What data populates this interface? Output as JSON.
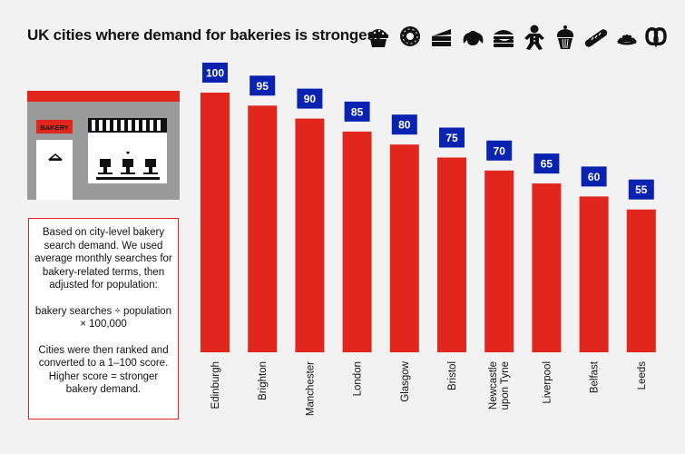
{
  "title": "UK cities where demand for bakeries is strongest",
  "icons": [
    "pie-icon",
    "donut-icon",
    "cake-slice-icon",
    "croissant-icon",
    "sandwich-icon",
    "gingerbread-man-icon",
    "cupcake-icon",
    "baguette-icon",
    "pasty-icon",
    "pretzel-icon"
  ],
  "shop": {
    "sign": "BAKERY"
  },
  "note": {
    "p1": "Based on city-level bakery search demand. We used average monthly searches for bakery-related terms, then adjusted for population:",
    "p2": "bakery searches ÷ population × 100,000",
    "p3": "Cities were then ranked and converted to a 1–100 score. Higher score = stronger bakery demand."
  },
  "colors": {
    "bar": "#e0261d",
    "label_bg": "#0a22b0",
    "label_text": "#ffffff"
  },
  "chart_data": {
    "type": "bar",
    "categories": [
      "Edinburgh",
      "Brighton",
      "Manchester",
      "London",
      "Glasgow",
      "Bristol",
      "Newcastle upon Tyne",
      "Liverpool",
      "Belfast",
      "Leeds"
    ],
    "values": [
      100,
      95,
      90,
      85,
      80,
      75,
      70,
      65,
      60,
      55
    ],
    "data_labels": [
      "100",
      "95",
      "90",
      "85",
      "80",
      "75",
      "70",
      "65",
      "60",
      "55"
    ],
    "ylim": [
      0,
      100
    ],
    "grid": false,
    "axis_visible": false,
    "label_orientation": "vertical"
  }
}
